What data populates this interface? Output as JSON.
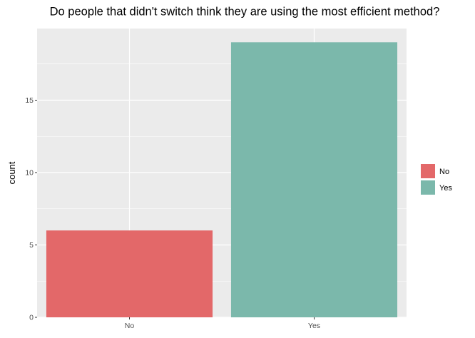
{
  "colors": {
    "panel_bg": "#ebebeb",
    "grid_major": "#ffffff",
    "tick_mark": "#333333",
    "series": {
      "No": "#e36869",
      "Yes": "#7bb8ab"
    }
  },
  "chart_data": {
    "type": "bar",
    "title": "Do people that didn't switch think they are using the most efficient method?",
    "xlabel": "",
    "ylabel": "count",
    "categories": [
      "No",
      "Yes"
    ],
    "values": [
      6,
      19
    ],
    "ylim": [
      0,
      19.95
    ],
    "yticks": [
      0,
      5,
      10,
      15
    ],
    "grid": true,
    "legend": {
      "position": "right",
      "entries": [
        {
          "label": "No",
          "color": "#e36869"
        },
        {
          "label": "Yes",
          "color": "#7bb8ab"
        }
      ]
    }
  }
}
